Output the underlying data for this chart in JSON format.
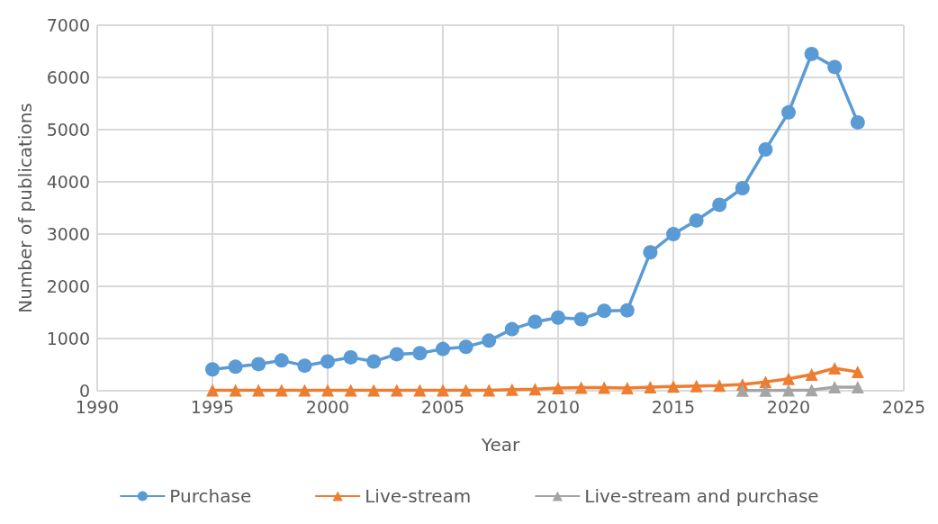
{
  "chart_data": {
    "type": "line",
    "xlabel": "Year",
    "ylabel": "Number of publications",
    "xlim": [
      1990,
      2025
    ],
    "xticks": [
      1990,
      1995,
      2000,
      2005,
      2010,
      2015,
      2020,
      2025
    ],
    "ylim": [
      0,
      7000
    ],
    "yticks": [
      0,
      1000,
      2000,
      3000,
      4000,
      5000,
      6000,
      7000
    ],
    "grid": true,
    "legend": "bottom",
    "series": [
      {
        "name": "Purchase",
        "color": "#5b9bd5",
        "marker": "circle",
        "x": [
          1995,
          1996,
          1997,
          1998,
          1999,
          2000,
          2001,
          2002,
          2003,
          2004,
          2005,
          2006,
          2007,
          2008,
          2009,
          2010,
          2011,
          2012,
          2013,
          2014,
          2015,
          2016,
          2017,
          2018,
          2019,
          2020,
          2021,
          2022,
          2023
        ],
        "values": [
          410,
          460,
          510,
          580,
          480,
          560,
          640,
          560,
          700,
          720,
          800,
          840,
          960,
          1180,
          1320,
          1400,
          1370,
          1530,
          1540,
          2650,
          3000,
          3260,
          3560,
          3880,
          4620,
          5330,
          6450,
          6200,
          5140
        ]
      },
      {
        "name": "Live-stream",
        "color": "#ed7d31",
        "marker": "triangle",
        "x": [
          1995,
          1996,
          1997,
          1998,
          1999,
          2000,
          2001,
          2002,
          2003,
          2004,
          2005,
          2006,
          2007,
          2008,
          2009,
          2010,
          2011,
          2012,
          2013,
          2014,
          2015,
          2016,
          2017,
          2018,
          2019,
          2020,
          2021,
          2022,
          2023
        ],
        "values": [
          10,
          10,
          10,
          10,
          10,
          10,
          10,
          10,
          10,
          10,
          10,
          10,
          10,
          20,
          30,
          50,
          60,
          60,
          50,
          70,
          80,
          90,
          100,
          120,
          170,
          230,
          310,
          430,
          360
        ]
      },
      {
        "name": "Live-stream and purchase",
        "color": "#a5a5a5",
        "marker": "triangle",
        "x": [
          2018,
          2019,
          2020,
          2021,
          2022,
          2023
        ],
        "values": [
          5,
          5,
          10,
          15,
          70,
          70
        ]
      }
    ]
  }
}
